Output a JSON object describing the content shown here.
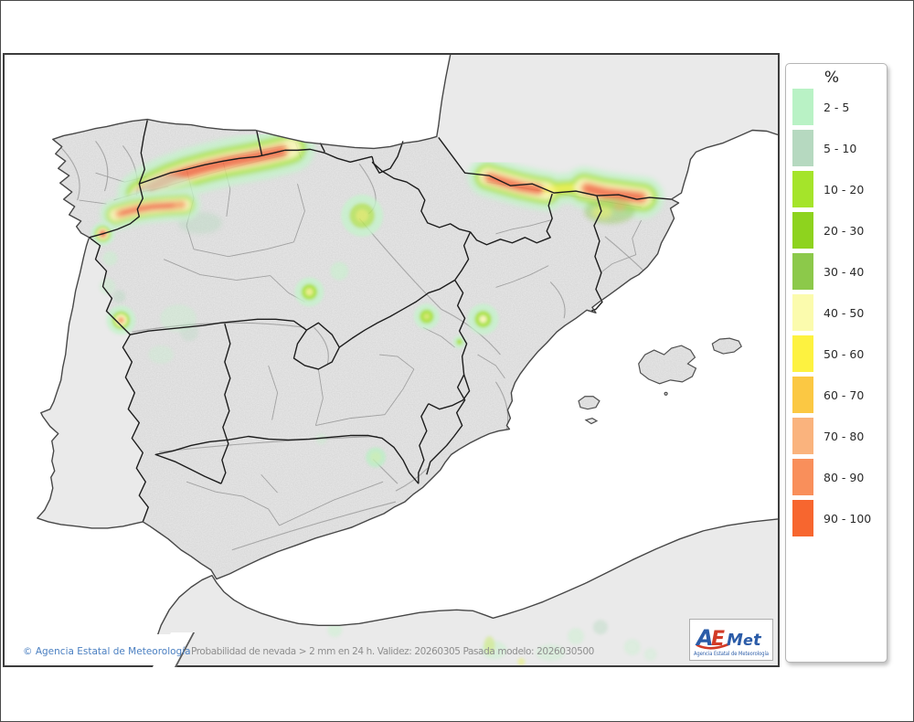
{
  "legend": {
    "title": "%",
    "items": [
      {
        "label": "2 - 5",
        "color": "#b9f2c5"
      },
      {
        "label": "5 - 10",
        "color": "#b6d9c0"
      },
      {
        "label": "10 - 20",
        "color": "#a5e42a"
      },
      {
        "label": "20 - 30",
        "color": "#8ed31e"
      },
      {
        "label": "30 - 40",
        "color": "#8cc94a"
      },
      {
        "label": "40 - 50",
        "color": "#fbfbad"
      },
      {
        "label": "50 - 60",
        "color": "#fdf240"
      },
      {
        "label": "60 - 70",
        "color": "#fbc843"
      },
      {
        "label": "70 - 80",
        "color": "#fab37d"
      },
      {
        "label": "80 - 90",
        "color": "#f98f5b"
      },
      {
        "label": "90 - 100",
        "color": "#f7662f"
      }
    ]
  },
  "footer": {
    "copyright": "© Agencia Estatal de Meteorología",
    "caption": "Probabilidad de nevada > 2 mm en 24 h. Validez: 20260305 Pasada modelo: 2026030500"
  },
  "logo": {
    "letters": [
      "A",
      "E",
      "M",
      "e",
      "t"
    ],
    "caption": "Agencia Estatal de Meteorología",
    "blue": "#2b5ca8",
    "red": "#d23b27"
  },
  "map": {
    "sea_color": "#ffffff",
    "land_color": "#eaeaea",
    "community_border_color": "#1c1c1c",
    "province_border_color": "#9a9a9a",
    "overlays": [
      {
        "name": "cordillera-cantabrica-band",
        "peak_range": "90 - 100"
      },
      {
        "name": "sanabria-leon-band",
        "peak_range": "90 - 100"
      },
      {
        "name": "ourense-border-spot",
        "peak_range": "90 - 100"
      },
      {
        "name": "pyrenees-west-band",
        "peak_range": "90 - 100"
      },
      {
        "name": "pyrenees-east-band",
        "peak_range": "90 - 100"
      },
      {
        "name": "sierra-demanda-spot",
        "peak_range": "20 - 30"
      },
      {
        "name": "sistema-iberico-soria-spot",
        "peak_range": "40 - 50"
      },
      {
        "name": "serrania-de-cuenca-spot",
        "peak_range": "20 - 30"
      },
      {
        "name": "gudar-javalambre-spot",
        "peak_range": "40 - 50"
      },
      {
        "name": "serra-da-estrela-spot",
        "peak_range": "70 - 80"
      },
      {
        "name": "cazorla-segura-spot",
        "peak_range": "2 - 5"
      },
      {
        "name": "north-africa-spots",
        "peak_range": "10 - 20"
      }
    ]
  }
}
